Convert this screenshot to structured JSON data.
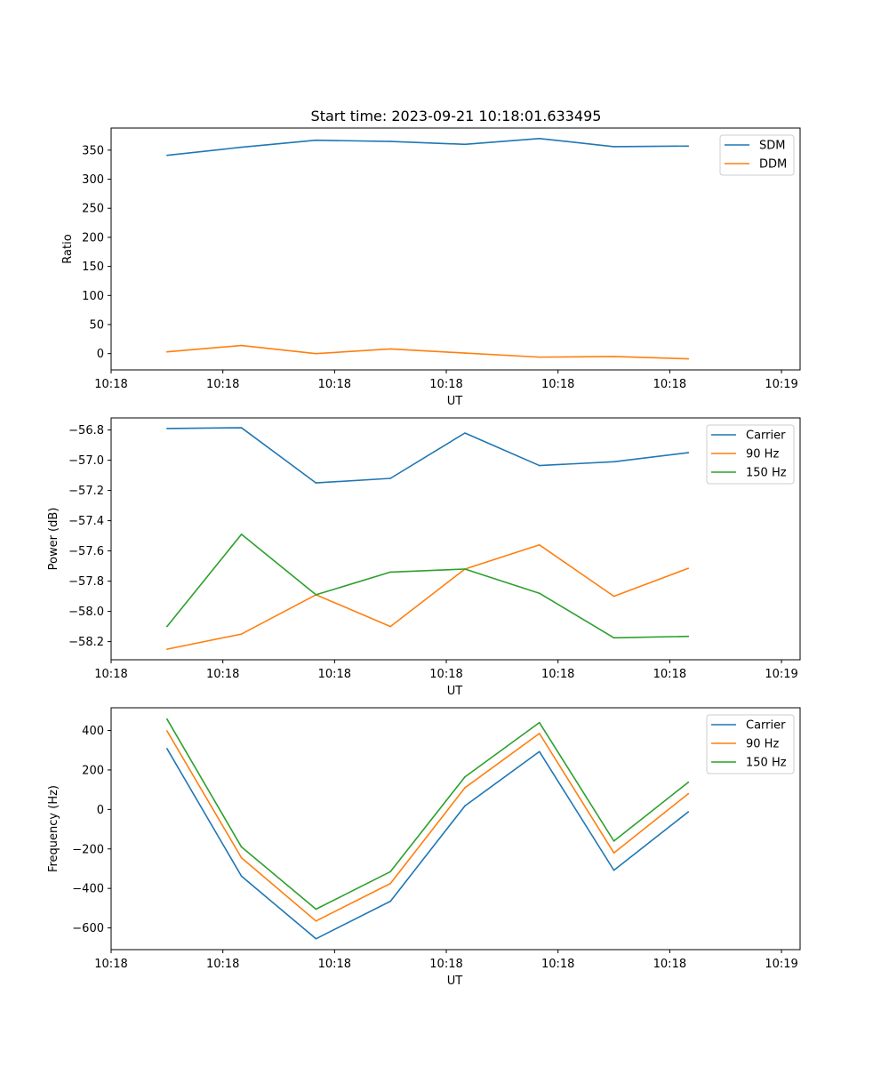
{
  "title": "Start time: 2023-09-21 10:18:01.633495",
  "chart_data": [
    {
      "type": "line",
      "title": "Start time: 2023-09-21 10:18:01.633495",
      "xlabel": "UT",
      "ylabel": "Ratio",
      "x": [
        0,
        1,
        2,
        3,
        4,
        5,
        6,
        7
      ],
      "xlim": [
        -0.75,
        8.5
      ],
      "xticks": [
        -0.75,
        0.75,
        2.25,
        3.75,
        5.25,
        6.75,
        8.25
      ],
      "xticklabels": [
        "10:18",
        "10:18",
        "10:18",
        "10:18",
        "10:18",
        "10:18",
        "10:19"
      ],
      "ylim": [
        -28,
        388
      ],
      "yticks": [
        0,
        50,
        100,
        150,
        200,
        250,
        300,
        350
      ],
      "yticklabels": [
        "0",
        "50",
        "100",
        "150",
        "200",
        "250",
        "300",
        "350"
      ],
      "legend_position": "top-right",
      "series": [
        {
          "name": "SDM",
          "color": "#1f77b4",
          "values": [
            341,
            355,
            367,
            365,
            360,
            370,
            356,
            357
          ]
        },
        {
          "name": "DDM",
          "color": "#ff7f0e",
          "values": [
            3,
            14,
            0,
            8,
            1,
            -6,
            -5,
            -9
          ]
        }
      ]
    },
    {
      "type": "line",
      "xlabel": "UT",
      "ylabel": "Power (dB)",
      "x": [
        0,
        1,
        2,
        3,
        4,
        5,
        6,
        7
      ],
      "xlim": [
        -0.75,
        8.5
      ],
      "xticks": [
        -0.75,
        0.75,
        2.25,
        3.75,
        5.25,
        6.75,
        8.25
      ],
      "xticklabels": [
        "10:18",
        "10:18",
        "10:18",
        "10:18",
        "10:18",
        "10:18",
        "10:19"
      ],
      "ylim": [
        -58.32,
        -56.72
      ],
      "yticks": [
        -58.2,
        -58.0,
        -57.8,
        -57.6,
        -57.4,
        -57.2,
        -57.0,
        -56.8
      ],
      "yticklabels": [
        "−58.2",
        "−58.0",
        "−57.8",
        "−57.6",
        "−57.4",
        "−57.2",
        "−57.0",
        "−56.8"
      ],
      "legend_position": "top-right",
      "series": [
        {
          "name": "Carrier",
          "color": "#1f77b4",
          "values": [
            -56.79,
            -56.785,
            -57.15,
            -57.12,
            -56.82,
            -57.035,
            -57.01,
            -56.95
          ]
        },
        {
          "name": "90 Hz",
          "color": "#ff7f0e",
          "values": [
            -58.25,
            -58.15,
            -57.89,
            -58.1,
            -57.72,
            -57.56,
            -57.9,
            -57.715
          ]
        },
        {
          "name": "150 Hz",
          "color": "#2ca02c",
          "values": [
            -58.1,
            -57.49,
            -57.89,
            -57.74,
            -57.72,
            -57.88,
            -58.175,
            -58.165
          ]
        }
      ]
    },
    {
      "type": "line",
      "xlabel": "UT",
      "ylabel": "Frequency (Hz)",
      "x": [
        0,
        1,
        2,
        3,
        4,
        5,
        6,
        7
      ],
      "xlim": [
        -0.75,
        8.5
      ],
      "xticks": [
        -0.75,
        0.75,
        2.25,
        3.75,
        5.25,
        6.75,
        8.25
      ],
      "xticklabels": [
        "10:18",
        "10:18",
        "10:18",
        "10:18",
        "10:18",
        "10:18",
        "10:19"
      ],
      "ylim": [
        -710,
        515
      ],
      "yticks": [
        -600,
        -400,
        -200,
        0,
        200,
        400
      ],
      "yticklabels": [
        "−600",
        "−400",
        "−200",
        "0",
        "200",
        "400"
      ],
      "legend_position": "top-right",
      "series": [
        {
          "name": "Carrier",
          "color": "#1f77b4",
          "values": [
            308,
            -338,
            -655,
            -465,
            18,
            293,
            -308,
            -12
          ]
        },
        {
          "name": "90 Hz",
          "color": "#ff7f0e",
          "values": [
            398,
            -245,
            -565,
            -375,
            110,
            385,
            -220,
            80
          ]
        },
        {
          "name": "150 Hz",
          "color": "#2ca02c",
          "values": [
            458,
            -190,
            -505,
            -315,
            165,
            440,
            -160,
            138
          ]
        }
      ]
    }
  ]
}
